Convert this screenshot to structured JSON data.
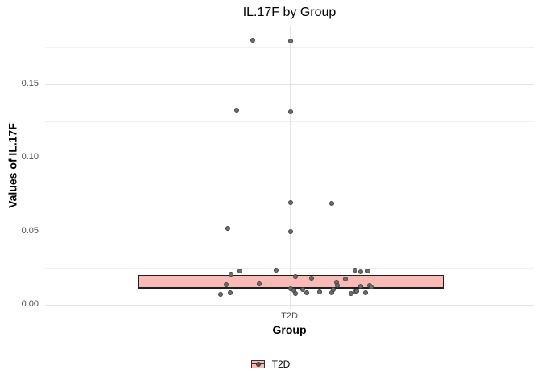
{
  "title": "IL.17F by Group",
  "axes": {
    "y_title": "Values of IL.17F",
    "x_title": "Group",
    "x_tick_label": "T2D",
    "y_tick_labels": [
      "0.00",
      "0.05",
      "0.10",
      "0.15"
    ]
  },
  "legend": {
    "key_name": "boxplot-key-glyph",
    "label": "T2D"
  },
  "colors": {
    "box_fill": "#fabbb6",
    "box_border": "#1f1f1f",
    "point_fill": "#6e6e6e",
    "point_stroke": "#3f3f3f",
    "grid_major": "#e3e3e3",
    "grid_minor": "#f0f0f0",
    "tick_text": "#4d4d4d",
    "text": "#000000"
  },
  "chart_data": {
    "type": "boxplot+jitter",
    "title": "IL.17F by Group",
    "xlabel": "Group",
    "ylabel": "Values of IL.17F",
    "categories": [
      "T2D"
    ],
    "y_major_breaks": [
      0.0,
      0.05,
      0.1,
      0.15
    ],
    "y_minor_breaks": [
      0.025,
      0.075,
      0.125,
      0.175
    ],
    "ylim": [
      -0.003,
      0.19
    ],
    "grid": true,
    "legend_position": "bottom",
    "box": {
      "group": "T2D",
      "q1": 0.0105,
      "median": 0.0113,
      "q3": 0.0205
    },
    "points_note": "each point = [jittered x pixel, y data value]",
    "points": [
      [
        314,
        0.18
      ],
      [
        361,
        0.1795
      ],
      [
        294,
        0.1325
      ],
      [
        361,
        0.1313
      ],
      [
        361,
        0.0697
      ],
      [
        412,
        0.0688
      ],
      [
        283,
        0.0521
      ],
      [
        361,
        0.0499
      ],
      [
        287,
        0.0208
      ],
      [
        298,
        0.0228
      ],
      [
        343,
        0.0233
      ],
      [
        281,
        0.0138
      ],
      [
        322,
        0.0142
      ],
      [
        286,
        0.0082
      ],
      [
        274,
        0.0071
      ],
      [
        367,
        0.0193
      ],
      [
        361,
        0.0107
      ],
      [
        365,
        0.0098
      ],
      [
        367,
        0.0074
      ],
      [
        376,
        0.0102
      ],
      [
        387,
        0.0182
      ],
      [
        381,
        0.008
      ],
      [
        397,
        0.0089
      ],
      [
        412,
        0.0082
      ],
      [
        414,
        0.0104
      ],
      [
        418,
        0.0155
      ],
      [
        419,
        0.0134
      ],
      [
        429,
        0.0177
      ],
      [
        441,
        0.0233
      ],
      [
        448,
        0.0222
      ],
      [
        457,
        0.023
      ],
      [
        436,
        0.0074
      ],
      [
        441,
        0.0085
      ],
      [
        443,
        0.0093
      ],
      [
        454,
        0.008
      ],
      [
        448,
        0.0126
      ],
      [
        459,
        0.0134
      ],
      [
        461,
        0.012
      ]
    ]
  }
}
